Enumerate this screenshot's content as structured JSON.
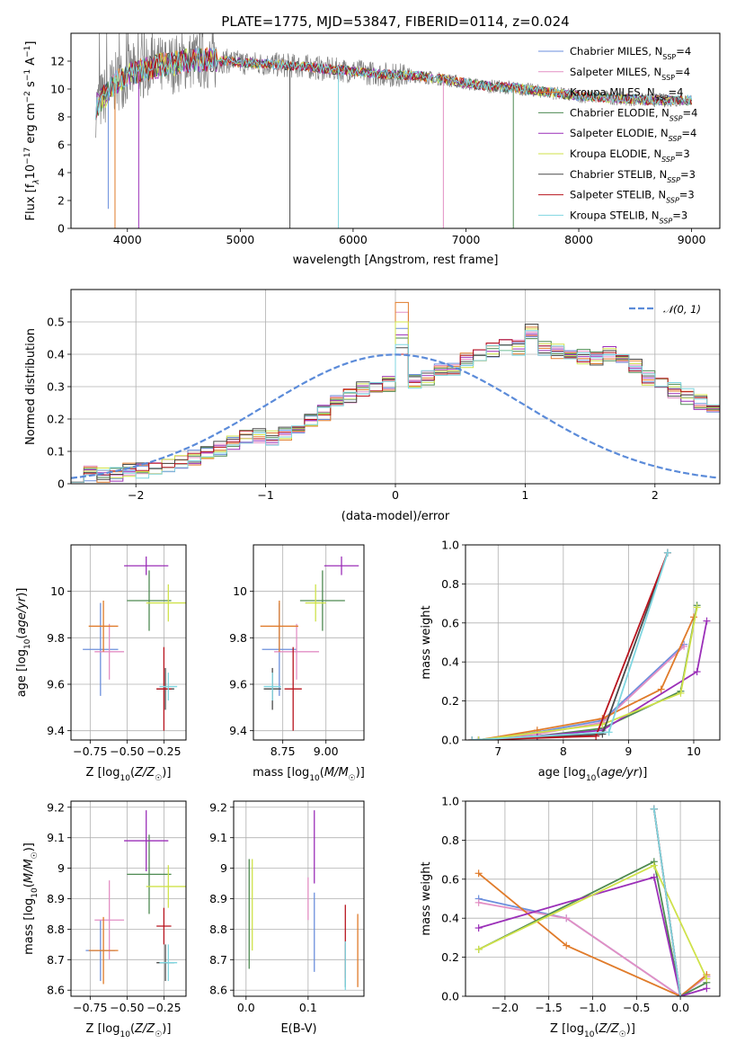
{
  "figure": {
    "title": "PLATE=1775, MJD=53847, FIBERID=0114, z=0.024"
  },
  "models": [
    {
      "name": "Chabrier MILES, N$_{SSP}$=4",
      "label_plain": "Chabrier MILES, N_SSP=4",
      "color": "#6b8fdc"
    },
    {
      "name": "Salpeter MILES, N$_{SSP}$=4",
      "label_plain": "Salpeter MILES, N_SSP=4",
      "color": "#e38fc4"
    },
    {
      "name": "Kroupa MILES, N$_{SSP}$=4",
      "label_plain": "Kroupa MILES, N_SSP=4",
      "color": "#e07b2a"
    },
    {
      "name": "Chabrier ELODIE, N$_{SSP}$=4",
      "label_plain": "Chabrier ELODIE, N_SSP=4",
      "color": "#4e8a52"
    },
    {
      "name": "Salpeter ELODIE, N$_{SSP}$=4",
      "label_plain": "Salpeter ELODIE, N_SSP=4",
      "color": "#9b2fb8"
    },
    {
      "name": "Kroupa ELODIE, N$_{SSP}$=3",
      "label_plain": "Kroupa ELODIE, N_SSP=3",
      "color": "#cfe24a"
    },
    {
      "name": "Chabrier STELIB, N$_{SSP}$=3",
      "label_plain": "Chabrier STELIB, N_SSP=3",
      "color": "#4a4a4a"
    },
    {
      "name": "Salpeter STELIB, N$_{SSP}$=3",
      "label_plain": "Salpeter STELIB, N_SSP=3",
      "color": "#b8141e"
    },
    {
      "name": "Kroupa STELIB, N$_{SSP}$=3",
      "label_plain": "Kroupa STELIB, N_SSP=3",
      "color": "#7fd6e0"
    }
  ],
  "chart_data": [
    {
      "id": "spectrum",
      "type": "line",
      "xlabel": "wavelength [Angstrom, rest frame]",
      "ylabel": "Flux [f_λ 10^-17 erg cm^-2 s^-1 A^-1]",
      "xlim": [
        3500,
        9250
      ],
      "ylim": [
        0,
        14
      ],
      "xticks": [
        4000,
        5000,
        6000,
        7000,
        8000,
        9000
      ],
      "yticks": [
        0,
        2,
        4,
        6,
        8,
        10,
        12
      ],
      "legend": "upper-right",
      "data_color": "#808080",
      "continuum": {
        "x": [
          3700,
          3800,
          3900,
          4000,
          4100,
          4200,
          4300,
          4400,
          4500,
          4600,
          4700,
          4800,
          4900,
          5000,
          5200,
          5400,
          5600,
          5800,
          6000,
          6200,
          6400,
          6600,
          6800,
          7000,
          7200,
          7400,
          7600,
          7800,
          8000,
          8200,
          8400,
          8600,
          8800,
          9000
        ],
        "y": [
          8.5,
          9.5,
          10.5,
          11.0,
          11.3,
          11.5,
          11.7,
          11.8,
          12.0,
          12.1,
          12.1,
          12.0,
          12.0,
          11.9,
          11.8,
          11.7,
          11.6,
          11.4,
          11.3,
          11.1,
          11.0,
          10.9,
          10.7,
          10.4,
          10.2,
          10.1,
          9.9,
          9.7,
          9.5,
          9.4,
          9.3,
          9.2,
          9.2,
          9.2
        ]
      },
      "absorption_lines": [
        {
          "x": 3830,
          "y": 1.4
        },
        {
          "x": 3890,
          "y": 0.0
        },
        {
          "x": 4100,
          "y": 0.0
        },
        {
          "x": 5440,
          "y": 0.0
        },
        {
          "x": 5870,
          "y": 0.0
        },
        {
          "x": 6800,
          "y": 0.0
        },
        {
          "x": 7420,
          "y": 0.0
        }
      ]
    },
    {
      "id": "residual-histogram",
      "type": "step",
      "xlabel": "(data-model)/error",
      "ylabel": "Normed distribution",
      "xlim": [
        -2.5,
        2.5
      ],
      "ylim": [
        0,
        0.6
      ],
      "xticks": [
        -2,
        -1,
        0,
        1,
        2
      ],
      "yticks": [
        0.0,
        0.1,
        0.2,
        0.3,
        0.4,
        0.5
      ],
      "legend_label": "$\\mathcal{N}(0,1)$",
      "legend_text": "𝒩(0, 1)",
      "legend": "upper-right",
      "gaussian_color": "#5b8bd9",
      "bin_width": 0.1,
      "bin_start": -2.5,
      "base_values": [
        0.02,
        0.03,
        0.03,
        0.03,
        0.04,
        0.04,
        0.05,
        0.06,
        0.07,
        0.08,
        0.09,
        0.11,
        0.13,
        0.15,
        0.15,
        0.14,
        0.15,
        0.17,
        0.19,
        0.22,
        0.25,
        0.27,
        0.29,
        0.29,
        0.31,
        0.33,
        0.32,
        0.33,
        0.35,
        0.36,
        0.38,
        0.39,
        0.41,
        0.43,
        0.42,
        0.47,
        0.42,
        0.41,
        0.4,
        0.39,
        0.39,
        0.4,
        0.38,
        0.36,
        0.33,
        0.31,
        0.29,
        0.27,
        0.25,
        0.22,
        0.2,
        0.18,
        0.16,
        0.14,
        0.13,
        0.12,
        0.11,
        0.1,
        0.09,
        0.08,
        0.07,
        0.06,
        0.05,
        0.05,
        0.04,
        0.04,
        0.03,
        0.03,
        0.02,
        0.02,
        0.02,
        0.02
      ],
      "peak_values": [
        0.48,
        0.53,
        0.56,
        0.45,
        0.46,
        0.5,
        0.42,
        0.4,
        0.43
      ]
    },
    {
      "id": "age-vs-Z",
      "type": "errorbar",
      "xlabel": "Z [log10(Z/Z☉)]",
      "ylabel": "age [log10(age/yr)]",
      "xlim": [
        -0.88,
        -0.1
      ],
      "ylim": [
        9.36,
        10.2
      ],
      "xticks": [
        -0.75,
        -0.5,
        -0.25
      ],
      "yticks": [
        9.4,
        9.6,
        9.8,
        10.0
      ],
      "points": [
        {
          "x": -0.68,
          "xerr": 0.12,
          "y": 9.75,
          "yerr": 0.2
        },
        {
          "x": -0.62,
          "xerr": 0.1,
          "y": 9.74,
          "yerr": 0.12
        },
        {
          "x": -0.66,
          "xerr": 0.1,
          "y": 9.85,
          "yerr": 0.11
        },
        {
          "x": -0.35,
          "xerr": 0.15,
          "y": 9.96,
          "yerr": 0.13
        },
        {
          "x": -0.37,
          "xerr": 0.15,
          "y": 10.11,
          "yerr": 0.04
        },
        {
          "x": -0.22,
          "xerr": 0.15,
          "y": 9.95,
          "yerr": 0.08
        },
        {
          "x": -0.24,
          "xerr": 0.06,
          "y": 9.58,
          "yerr": 0.09
        },
        {
          "x": -0.25,
          "xerr": 0.05,
          "y": 9.58,
          "yerr": 0.18
        },
        {
          "x": -0.22,
          "xerr": 0.06,
          "y": 9.59,
          "yerr": 0.06
        }
      ]
    },
    {
      "id": "age-vs-mass",
      "type": "errorbar",
      "xlabel": "mass [log10(M/M☉)]",
      "ylabel": "",
      "xlim": [
        8.58,
        9.22
      ],
      "ylim": [
        9.36,
        10.2
      ],
      "xticks": [
        8.75,
        9.0
      ],
      "yticks": [
        9.4,
        9.6,
        9.8,
        10.0
      ],
      "points": [
        {
          "x": 8.73,
          "xerr": 0.1,
          "y": 9.75,
          "yerr": 0.2
        },
        {
          "x": 8.83,
          "xerr": 0.13,
          "y": 9.74,
          "yerr": 0.12
        },
        {
          "x": 8.73,
          "xerr": 0.11,
          "y": 9.85,
          "yerr": 0.11
        },
        {
          "x": 8.98,
          "xerr": 0.13,
          "y": 9.96,
          "yerr": 0.13
        },
        {
          "x": 9.09,
          "xerr": 0.1,
          "y": 10.11,
          "yerr": 0.04
        },
        {
          "x": 8.94,
          "xerr": 0.06,
          "y": 9.95,
          "yerr": 0.08
        },
        {
          "x": 8.69,
          "xerr": 0.05,
          "y": 9.58,
          "yerr": 0.09
        },
        {
          "x": 8.81,
          "xerr": 0.05,
          "y": 9.58,
          "yerr": 0.18
        },
        {
          "x": 8.69,
          "xerr": 0.05,
          "y": 9.59,
          "yerr": 0.06
        }
      ]
    },
    {
      "id": "mass-weight-vs-age",
      "type": "line",
      "xlabel": "age [log10(age/yr)]",
      "ylabel": "mass weight",
      "xlim": [
        6.5,
        10.4
      ],
      "ylim": [
        0,
        1
      ],
      "xticks": [
        7,
        8,
        9,
        10
      ],
      "yticks": [
        0.0,
        0.2,
        0.4,
        0.6,
        0.8,
        1.0
      ],
      "series": [
        {
          "x": [
            6.7,
            7.6,
            8.6,
            9.85
          ],
          "y": [
            0.0,
            0.04,
            0.1,
            0.49
          ]
        },
        {
          "x": [
            6.7,
            7.6,
            8.6,
            9.85
          ],
          "y": [
            0.0,
            0.03,
            0.09,
            0.48
          ]
        },
        {
          "x": [
            6.7,
            7.6,
            8.6,
            9.5,
            10.0
          ],
          "y": [
            0.0,
            0.05,
            0.11,
            0.26,
            0.63
          ]
        },
        {
          "x": [
            6.7,
            7.6,
            8.6,
            9.8,
            10.05
          ],
          "y": [
            0.0,
            0.02,
            0.06,
            0.25,
            0.69
          ]
        },
        {
          "x": [
            6.7,
            7.6,
            8.6,
            10.05,
            10.2
          ],
          "y": [
            0.0,
            0.02,
            0.05,
            0.35,
            0.61
          ]
        },
        {
          "x": [
            6.7,
            8.6,
            9.8,
            10.05
          ],
          "y": [
            0.0,
            0.08,
            0.24,
            0.68
          ]
        },
        {
          "x": [
            6.6,
            8.6,
            9.6
          ],
          "y": [
            0.0,
            0.03,
            0.96
          ]
        },
        {
          "x": [
            6.6,
            8.5,
            9.6
          ],
          "y": [
            0.0,
            0.02,
            0.96
          ]
        },
        {
          "x": [
            6.6,
            8.7,
            9.6
          ],
          "y": [
            0.0,
            0.04,
            0.96
          ]
        }
      ]
    },
    {
      "id": "mass-vs-Z",
      "type": "errorbar",
      "xlabel": "Z [log10(Z/Z☉)]",
      "ylabel": "mass [log10(M/M☉)]",
      "xlim": [
        -0.88,
        -0.1
      ],
      "ylim": [
        8.58,
        9.22
      ],
      "xticks": [
        -0.75,
        -0.5,
        -0.25
      ],
      "yticks": [
        8.6,
        8.7,
        8.8,
        8.9,
        9.0,
        9.1,
        9.2
      ],
      "points": [
        {
          "x": -0.68,
          "xerr": 0.1,
          "y": 8.73,
          "yerr": 0.1
        },
        {
          "x": -0.62,
          "xerr": 0.1,
          "y": 8.83,
          "yerr": 0.13
        },
        {
          "x": -0.66,
          "xerr": 0.1,
          "y": 8.73,
          "yerr": 0.11
        },
        {
          "x": -0.35,
          "xerr": 0.15,
          "y": 8.98,
          "yerr": 0.13
        },
        {
          "x": -0.37,
          "xerr": 0.15,
          "y": 9.09,
          "yerr": 0.1
        },
        {
          "x": -0.22,
          "xerr": 0.15,
          "y": 8.94,
          "yerr": 0.07
        },
        {
          "x": -0.24,
          "xerr": 0.06,
          "y": 8.69,
          "yerr": 0.06
        },
        {
          "x": -0.25,
          "xerr": 0.05,
          "y": 8.81,
          "yerr": 0.06
        },
        {
          "x": -0.22,
          "xerr": 0.06,
          "y": 8.69,
          "yerr": 0.06
        }
      ]
    },
    {
      "id": "mass-vs-EBV",
      "type": "errorbar",
      "xlabel": "E(B-V)",
      "ylabel": "",
      "xlim": [
        -0.02,
        0.19
      ],
      "ylim": [
        8.58,
        9.22
      ],
      "xticks": [
        0.0,
        0.1
      ],
      "yticks": [
        8.6,
        8.7,
        8.8,
        8.9,
        9.0,
        9.1,
        9.2
      ],
      "points": [
        {
          "x": 0.11,
          "xerr": 0,
          "y": 8.79,
          "yerr": 0.13
        },
        {
          "x": 0.1,
          "xerr": 0,
          "y": 8.9,
          "yerr": 0.07
        },
        {
          "x": 0.18,
          "xerr": 0,
          "y": 8.73,
          "yerr": 0.12
        },
        {
          "x": 0.005,
          "xerr": 0,
          "y": 8.85,
          "yerr": 0.18
        },
        {
          "x": 0.11,
          "xerr": 0,
          "y": 9.07,
          "yerr": 0.12
        },
        {
          "x": 0.01,
          "xerr": 0,
          "y": 8.88,
          "yerr": 0.15
        },
        {
          "x": 0.16,
          "xerr": 0,
          "y": 8.68,
          "yerr": 0.07
        },
        {
          "x": 0.16,
          "xerr": 0,
          "y": 8.76,
          "yerr": 0.12
        },
        {
          "x": 0.16,
          "xerr": 0,
          "y": 8.68,
          "yerr": 0.08
        }
      ]
    },
    {
      "id": "mass-weight-vs-Z",
      "type": "line",
      "xlabel": "Z [log10(Z/Z☉)]",
      "ylabel": "mass weight",
      "xlim": [
        -2.45,
        0.45
      ],
      "ylim": [
        0,
        1
      ],
      "xticks": [
        -2.0,
        -1.5,
        -1.0,
        -0.5,
        0.0
      ],
      "yticks": [
        0.0,
        0.2,
        0.4,
        0.6,
        0.8,
        1.0
      ],
      "series": [
        {
          "x": [
            -2.3,
            -1.3,
            0.0,
            0.3
          ],
          "y": [
            0.5,
            0.4,
            0.0,
            0.1
          ]
        },
        {
          "x": [
            -2.3,
            -1.3,
            0.0,
            0.3
          ],
          "y": [
            0.48,
            0.4,
            0.0,
            0.1
          ]
        },
        {
          "x": [
            -2.3,
            -1.3,
            0.0,
            0.3
          ],
          "y": [
            0.63,
            0.26,
            0.0,
            0.11
          ]
        },
        {
          "x": [
            -2.3,
            -0.3,
            0.0,
            0.3
          ],
          "y": [
            0.24,
            0.69,
            0.0,
            0.07
          ]
        },
        {
          "x": [
            -2.3,
            -0.3,
            0.0,
            0.3
          ],
          "y": [
            0.35,
            0.61,
            0.0,
            0.04
          ]
        },
        {
          "x": [
            -2.3,
            -0.3,
            0.3
          ],
          "y": [
            0.24,
            0.67,
            0.09
          ]
        },
        {
          "x": [
            -0.3,
            0.0
          ],
          "y": [
            0.96,
            0.0
          ]
        },
        {
          "x": [
            -0.3,
            0.0
          ],
          "y": [
            0.96,
            0.0
          ]
        },
        {
          "x": [
            -0.3,
            0.0
          ],
          "y": [
            0.96,
            0.0
          ]
        }
      ]
    }
  ]
}
